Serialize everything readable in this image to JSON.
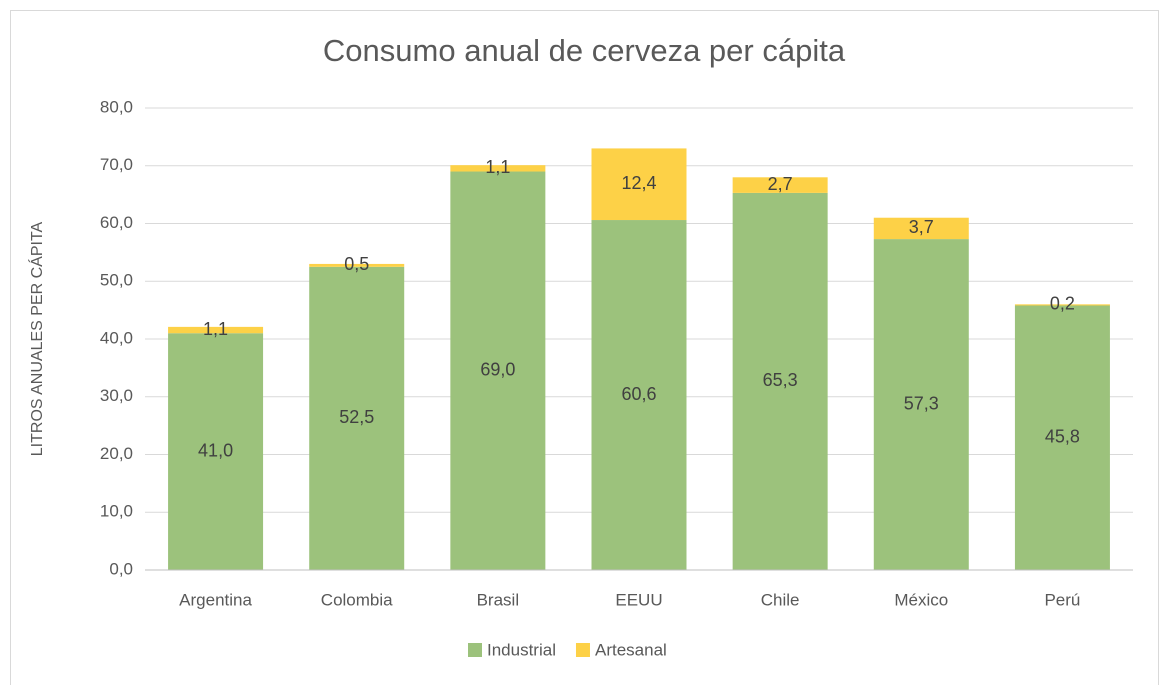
{
  "chart_data": {
    "type": "bar",
    "stacked": true,
    "title": "Consumo anual de cerveza per cápita",
    "y_label": "LITROS ANUALES PER CÁPITA",
    "categories": [
      "Argentina",
      "Colombia",
      "Brasil",
      "EEUU",
      "Chile",
      "México",
      "Perú"
    ],
    "series": [
      {
        "name": "Industrial",
        "color": "#9cc27c",
        "values": [
          41.0,
          52.5,
          69.0,
          60.6,
          65.3,
          57.3,
          45.8
        ],
        "value_labels": [
          "41,0",
          "52,5",
          "69,0",
          "60,6",
          "65,3",
          "57,3",
          "45,8"
        ]
      },
      {
        "name": "Artesanal",
        "color": "#fdd147",
        "values": [
          1.1,
          0.5,
          1.1,
          12.4,
          2.7,
          3.7,
          0.2
        ],
        "value_labels": [
          "1,1",
          "0,5",
          "1,1",
          "12,4",
          "2,7",
          "3,7",
          "0,2"
        ]
      }
    ],
    "ylim": [
      0,
      80
    ],
    "yticks": [
      {
        "value": 0,
        "label": "0,0"
      },
      {
        "value": 10,
        "label": "10,0"
      },
      {
        "value": 20,
        "label": "20,0"
      },
      {
        "value": 30,
        "label": "30,0"
      },
      {
        "value": 40,
        "label": "40,0"
      },
      {
        "value": 50,
        "label": "50,0"
      },
      {
        "value": 60,
        "label": "60,0"
      },
      {
        "value": 70,
        "label": "70,0"
      },
      {
        "value": 80,
        "label": "80,0"
      }
    ],
    "grid": true,
    "legend": "bottom"
  }
}
